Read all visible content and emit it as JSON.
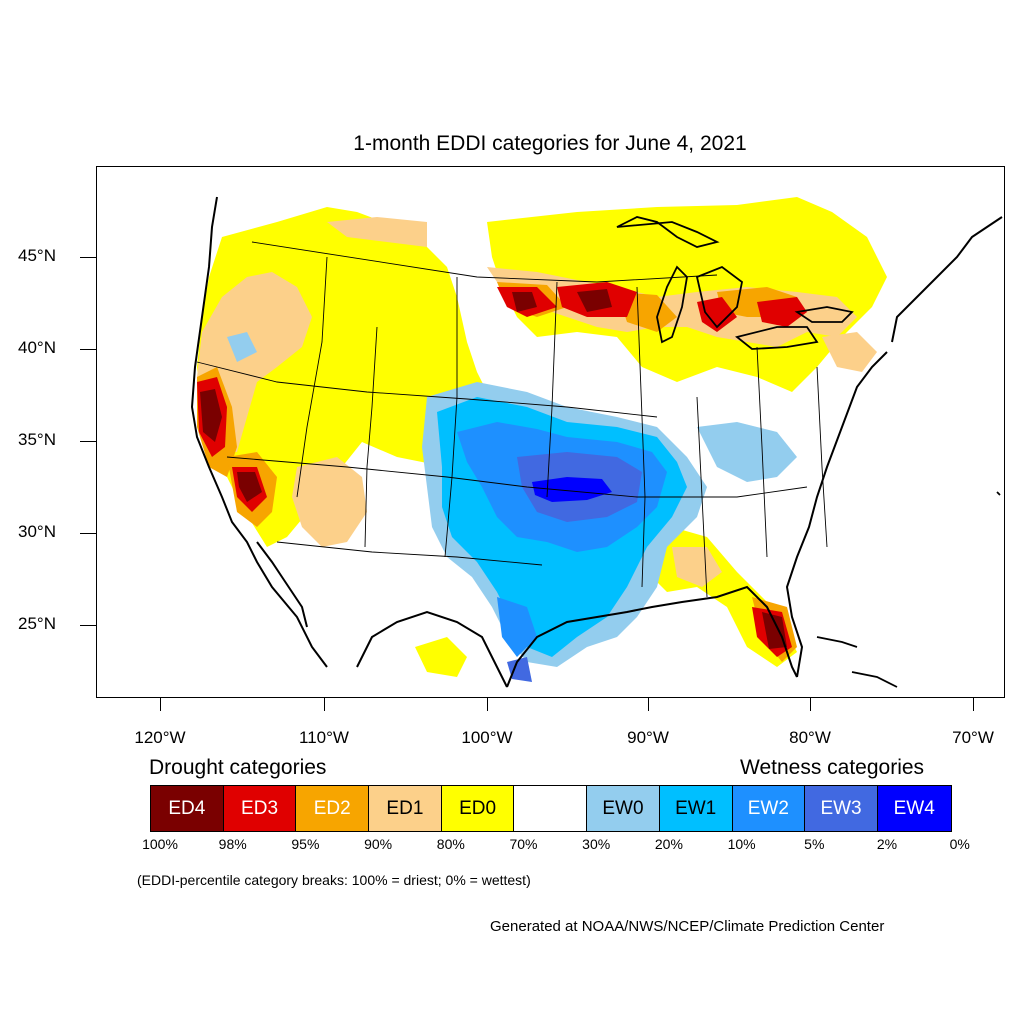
{
  "title": "1-month EDDI categories for June 4, 2021",
  "axes": {
    "lat_ticks": [
      "45°N",
      "40°N",
      "35°N",
      "30°N",
      "25°N"
    ],
    "lon_ticks": [
      "120°W",
      "110°W",
      "100°W",
      "90°W",
      "80°W",
      "70°W"
    ]
  },
  "legend": {
    "drought_label": "Drought categories",
    "wetness_label": "Wetness categories",
    "categories": [
      {
        "label": "ED4",
        "color": "#7a0000",
        "text_color": "#ffffff"
      },
      {
        "label": "ED3",
        "color": "#e00000",
        "text_color": "#ffffff"
      },
      {
        "label": "ED2",
        "color": "#f7a500",
        "text_color": "#ffffff"
      },
      {
        "label": "ED1",
        "color": "#fcd08a",
        "text_color": "#000000"
      },
      {
        "label": "ED0",
        "color": "#ffff00",
        "text_color": "#000000"
      },
      {
        "label": "",
        "color": "#ffffff",
        "text_color": "#000000"
      },
      {
        "label": "EW0",
        "color": "#93cdee",
        "text_color": "#000000"
      },
      {
        "label": "EW1",
        "color": "#00bfff",
        "text_color": "#000000"
      },
      {
        "label": "EW2",
        "color": "#1e90ff",
        "text_color": "#ffffff"
      },
      {
        "label": "EW3",
        "color": "#4169e1",
        "text_color": "#ffffff"
      },
      {
        "label": "EW4",
        "color": "#0000ff",
        "text_color": "#ffffff"
      }
    ],
    "percentiles": [
      "100%",
      "98%",
      "95%",
      "90%",
      "80%",
      "70%",
      "30%",
      "20%",
      "10%",
      "5%",
      "2%",
      "0%"
    ]
  },
  "note": "(EDDI-percentile category breaks: 100% = driest; 0% = wettest)",
  "credit": "Generated at NOAA/NWS/NCEP/Climate Prediction Center"
}
